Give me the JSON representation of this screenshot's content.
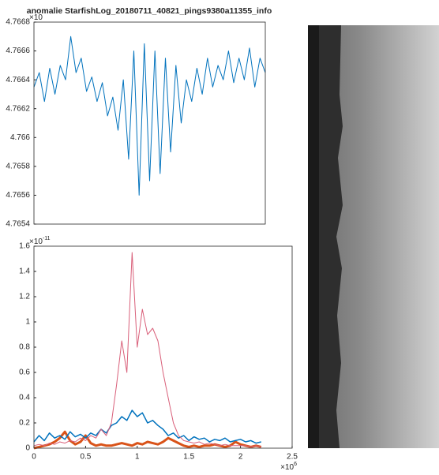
{
  "chart_data": [
    {
      "type": "line",
      "title": "anomalie StarfishLog_20180711_40821_pings9380a11355_info",
      "y_multiplier": {
        "base": "×10"
      },
      "x": [
        0,
        0.05,
        0.1,
        0.15,
        0.2,
        0.25,
        0.3,
        0.35,
        0.4,
        0.45,
        0.5,
        0.55,
        0.6,
        0.65,
        0.7,
        0.75,
        0.8,
        0.85,
        0.9,
        0.95,
        1,
        1.05,
        1.1,
        1.15,
        1.2,
        1.25,
        1.3,
        1.35,
        1.4,
        1.45,
        1.5,
        1.55,
        1.6,
        1.65,
        1.7,
        1.75,
        1.8,
        1.85,
        1.9,
        1.95,
        2,
        2.05,
        2.1,
        2.15,
        2.2
      ],
      "series": [
        {
          "color": "#0072bd",
          "values": [
            4.76635,
            4.76645,
            4.76625,
            4.76648,
            4.7663,
            4.7665,
            4.7664,
            4.7667,
            4.76645,
            4.76655,
            4.76632,
            4.76642,
            4.76625,
            4.76638,
            4.76615,
            4.76628,
            4.76605,
            4.7664,
            4.76585,
            4.7666,
            4.7656,
            4.76665,
            4.7657,
            4.7666,
            4.76575,
            4.76655,
            4.7659,
            4.7665,
            4.7661,
            4.7664,
            4.76625,
            4.76648,
            4.7663,
            4.76655,
            4.76635,
            4.7665,
            4.7664,
            4.7666,
            4.76638,
            4.76655,
            4.7664,
            4.76662,
            4.76635,
            4.76655,
            4.76645
          ]
        }
      ],
      "xlim": [
        0,
        2.2
      ],
      "ylim": [
        4.7654,
        4.7668
      ],
      "yticks": [
        4.7654,
        4.7656,
        4.7658,
        4.766,
        4.7662,
        4.7664,
        4.7666,
        4.7668
      ]
    },
    {
      "type": "line",
      "y_multiplier": {
        "base": "×10",
        "exponent": "-11"
      },
      "x_multiplier": {
        "base": "×10",
        "exponent": "6"
      },
      "x": [
        0,
        0.05,
        0.1,
        0.15,
        0.2,
        0.25,
        0.3,
        0.35,
        0.4,
        0.45,
        0.5,
        0.55,
        0.6,
        0.65,
        0.7,
        0.75,
        0.8,
        0.85,
        0.9,
        0.95,
        1,
        1.05,
        1.1,
        1.15,
        1.2,
        1.25,
        1.3,
        1.35,
        1.4,
        1.45,
        1.5,
        1.55,
        1.6,
        1.65,
        1.7,
        1.75,
        1.8,
        1.85,
        1.9,
        1.95,
        2,
        2.05,
        2.1,
        2.15,
        2.2
      ],
      "series": [
        {
          "color": "#d95319",
          "width": 3,
          "values": [
            0,
            0.01,
            0.02,
            0.03,
            0.05,
            0.08,
            0.13,
            0.06,
            0.03,
            0.05,
            0.1,
            0.04,
            0.02,
            0.03,
            0.02,
            0.02,
            0.03,
            0.04,
            0.03,
            0.02,
            0.04,
            0.03,
            0.05,
            0.04,
            0.03,
            0.05,
            0.08,
            0.06,
            0.04,
            0.02,
            0.01,
            0.02,
            0.01,
            0.02,
            0.02,
            0.03,
            0.02,
            0.01,
            0.02,
            0.05,
            0.03,
            0.02,
            0.01,
            0.02,
            0.01
          ]
        },
        {
          "color": "#0072bd",
          "width": 1.5,
          "values": [
            0.05,
            0.1,
            0.06,
            0.12,
            0.08,
            0.1,
            0.07,
            0.13,
            0.09,
            0.11,
            0.08,
            0.12,
            0.1,
            0.15,
            0.12,
            0.18,
            0.2,
            0.25,
            0.22,
            0.3,
            0.25,
            0.28,
            0.2,
            0.22,
            0.18,
            0.15,
            0.1,
            0.12,
            0.08,
            0.1,
            0.06,
            0.09,
            0.07,
            0.08,
            0.05,
            0.07,
            0.06,
            0.08,
            0.05,
            0.06,
            0.07,
            0.05,
            0.06,
            0.04,
            0.05
          ]
        },
        {
          "color": "#d9607a",
          "width": 1,
          "values": [
            0.02,
            0.03,
            0.02,
            0.04,
            0.03,
            0.05,
            0.04,
            0.06,
            0.05,
            0.08,
            0.06,
            0.1,
            0.08,
            0.15,
            0.1,
            0.2,
            0.5,
            0.85,
            0.6,
            1.55,
            0.8,
            1.1,
            0.9,
            0.95,
            0.85,
            0.6,
            0.4,
            0.2,
            0.1,
            0.06,
            0.05,
            0.04,
            0.05,
            0.03,
            0.04,
            0.03,
            0.02,
            0.03,
            0.02,
            0.02,
            0.02,
            0.02,
            0.01,
            0.02,
            0.01
          ]
        }
      ],
      "xlim": [
        0,
        2.5
      ],
      "xticks": [
        0,
        0.5,
        1,
        1.5,
        2,
        2.5
      ],
      "ylim": [
        0,
        1.6
      ],
      "yticks": [
        0,
        0.2,
        0.4,
        0.6,
        0.8,
        1,
        1.2,
        1.4,
        1.6
      ]
    }
  ]
}
